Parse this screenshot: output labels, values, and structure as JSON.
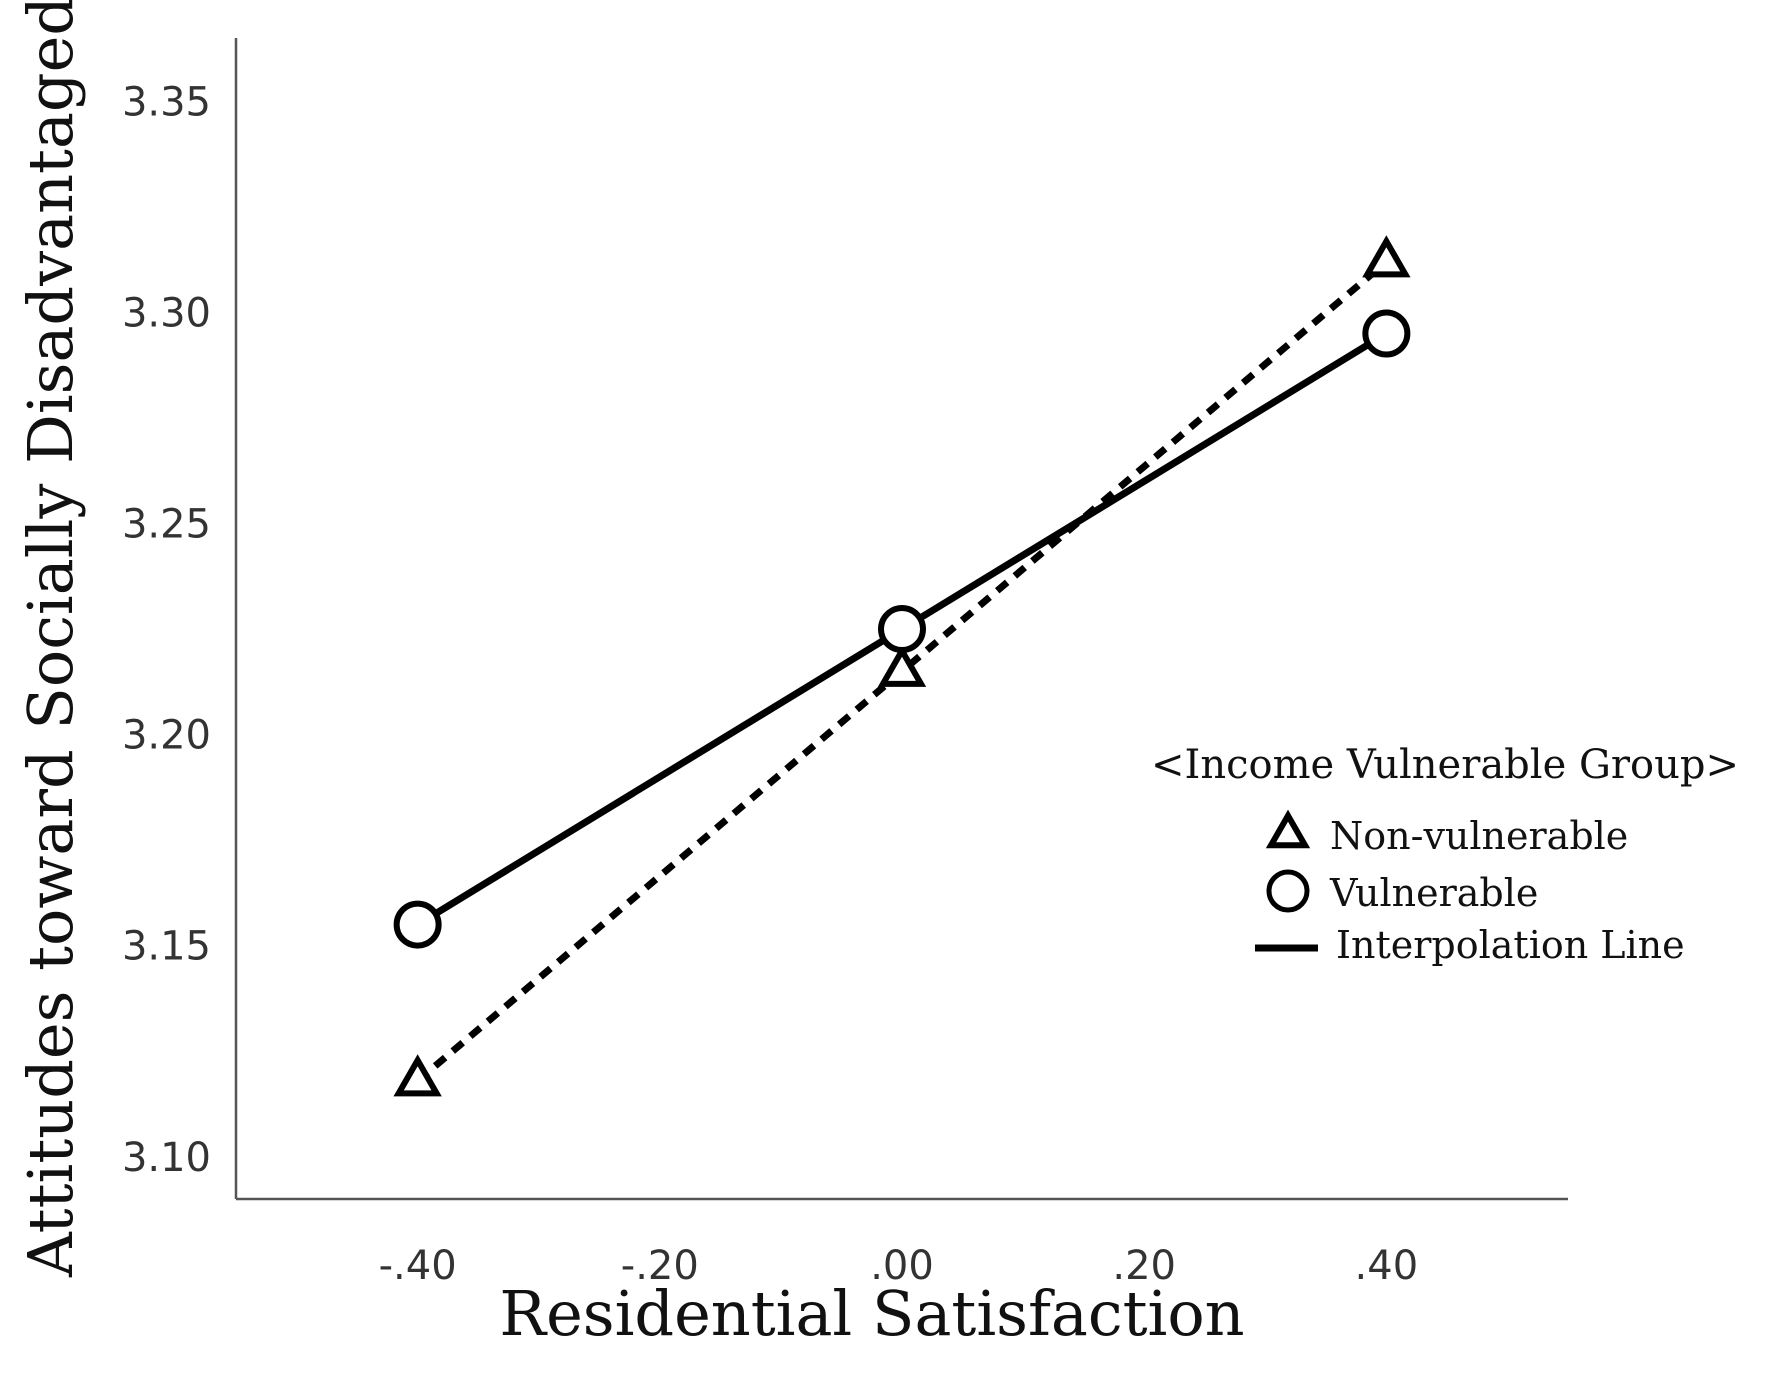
{
  "chart_data": {
    "type": "line",
    "title": "",
    "xlabel": "Residential Satisfaction",
    "ylabel": "Attitudes toward Socially Disadvantaged",
    "xlim": [
      -0.55,
      0.55
    ],
    "ylim": [
      3.09,
      3.365
    ],
    "x_ticks": [
      -0.4,
      -0.2,
      0.0,
      0.2,
      0.4
    ],
    "x_tick_labels": [
      "-.40",
      "-.20",
      ".00",
      ".20",
      ".40"
    ],
    "y_ticks": [
      3.1,
      3.15,
      3.2,
      3.25,
      3.3,
      3.35
    ],
    "y_tick_labels": [
      "3.10",
      "3.15",
      "3.20",
      "3.25",
      "3.30",
      "3.35"
    ],
    "grid": false,
    "legend_position": "right",
    "legend_title": "<Income Vulnerable Group>",
    "legend_interpolation_label": "Interpolation Line",
    "series": [
      {
        "name": "Non-vulnerable",
        "marker": "triangle",
        "line_style": "dotted",
        "x": [
          -0.4,
          0.0,
          0.4
        ],
        "y": [
          3.118,
          3.215,
          3.312
        ]
      },
      {
        "name": "Vulnerable",
        "marker": "circle",
        "line_style": "solid",
        "x": [
          -0.4,
          0.0,
          0.4
        ],
        "y": [
          3.155,
          3.225,
          3.295
        ]
      }
    ],
    "colors": {
      "ink": "#000000",
      "axis": "#555555",
      "tick_text": "#333333"
    }
  }
}
